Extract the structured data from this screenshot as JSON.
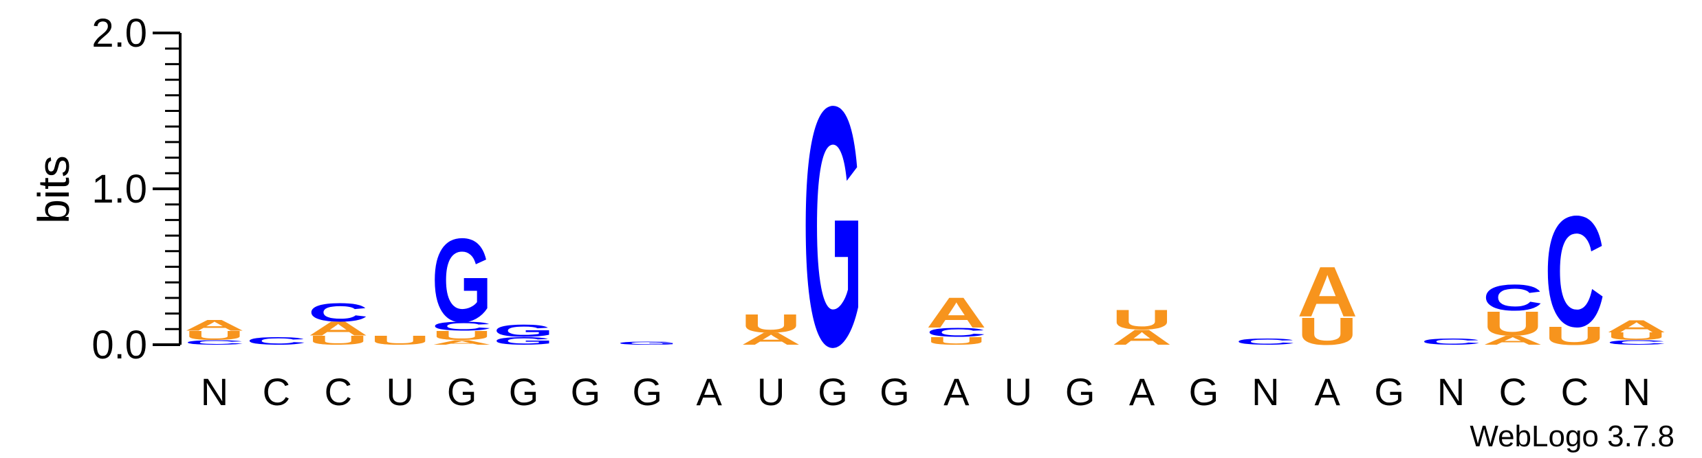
{
  "chart_data": {
    "type": "sequence-logo",
    "title": "",
    "ylabel": "bits",
    "xlabel": "",
    "ylim": [
      0,
      2.0
    ],
    "y_ticks": [
      "0.0",
      "1.0",
      "2.0"
    ],
    "positions": [
      "N",
      "C",
      "C",
      "U",
      "G",
      "G",
      "G",
      "G",
      "A",
      "U",
      "G",
      "G",
      "A",
      "U",
      "G",
      "A",
      "G",
      "N",
      "A",
      "G",
      "N",
      "C",
      "C",
      "N"
    ],
    "letter_colors": {
      "A": "#f7941d",
      "U": "#f7941d",
      "C": "#0000ff",
      "G": "#0000ff"
    },
    "stacks": [
      [
        {
          "l": "C",
          "h": 0.03
        },
        {
          "l": "U",
          "h": 0.06
        },
        {
          "l": "A",
          "h": 0.07
        }
      ],
      [
        {
          "l": "C",
          "h": 0.05
        }
      ],
      [
        {
          "l": "U",
          "h": 0.06
        },
        {
          "l": "A",
          "h": 0.09
        },
        {
          "l": "C",
          "h": 0.12
        }
      ],
      [
        {
          "l": "U",
          "h": 0.06
        }
      ],
      [
        {
          "l": "A",
          "h": 0.03
        },
        {
          "l": "U",
          "h": 0.06
        },
        {
          "l": "C",
          "h": 0.06
        },
        {
          "l": "G",
          "h": 0.55
        }
      ],
      [
        {
          "l": "G",
          "h": 0.05
        },
        {
          "l": "G",
          "h": 0.08
        }
      ],
      [],
      [
        {
          "l": "G",
          "h": 0.02
        }
      ],
      [],
      [
        {
          "l": "A",
          "h": 0.08
        },
        {
          "l": "U",
          "h": 0.12
        }
      ],
      [
        {
          "l": "G",
          "h": 1.58
        }
      ],
      [],
      [
        {
          "l": "U",
          "h": 0.05
        },
        {
          "l": "C",
          "h": 0.06
        },
        {
          "l": "A",
          "h": 0.2
        }
      ],
      [],
      [],
      [
        {
          "l": "A",
          "h": 0.1
        },
        {
          "l": "U",
          "h": 0.13
        }
      ],
      [],
      [
        {
          "l": "C",
          "h": 0.04
        }
      ],
      [
        {
          "l": "U",
          "h": 0.18
        },
        {
          "l": "A",
          "h": 0.33
        }
      ],
      [],
      [
        {
          "l": "C",
          "h": 0.04
        }
      ],
      [
        {
          "l": "A",
          "h": 0.06
        },
        {
          "l": "U",
          "h": 0.16
        },
        {
          "l": "C",
          "h": 0.17
        }
      ],
      [
        {
          "l": "U",
          "h": 0.12
        },
        {
          "l": "C",
          "h": 0.73
        }
      ],
      [
        {
          "l": "C",
          "h": 0.03
        },
        {
          "l": "U",
          "h": 0.05
        },
        {
          "l": "A",
          "h": 0.08
        }
      ]
    ]
  },
  "watermark": "WebLogo 3.7.8"
}
